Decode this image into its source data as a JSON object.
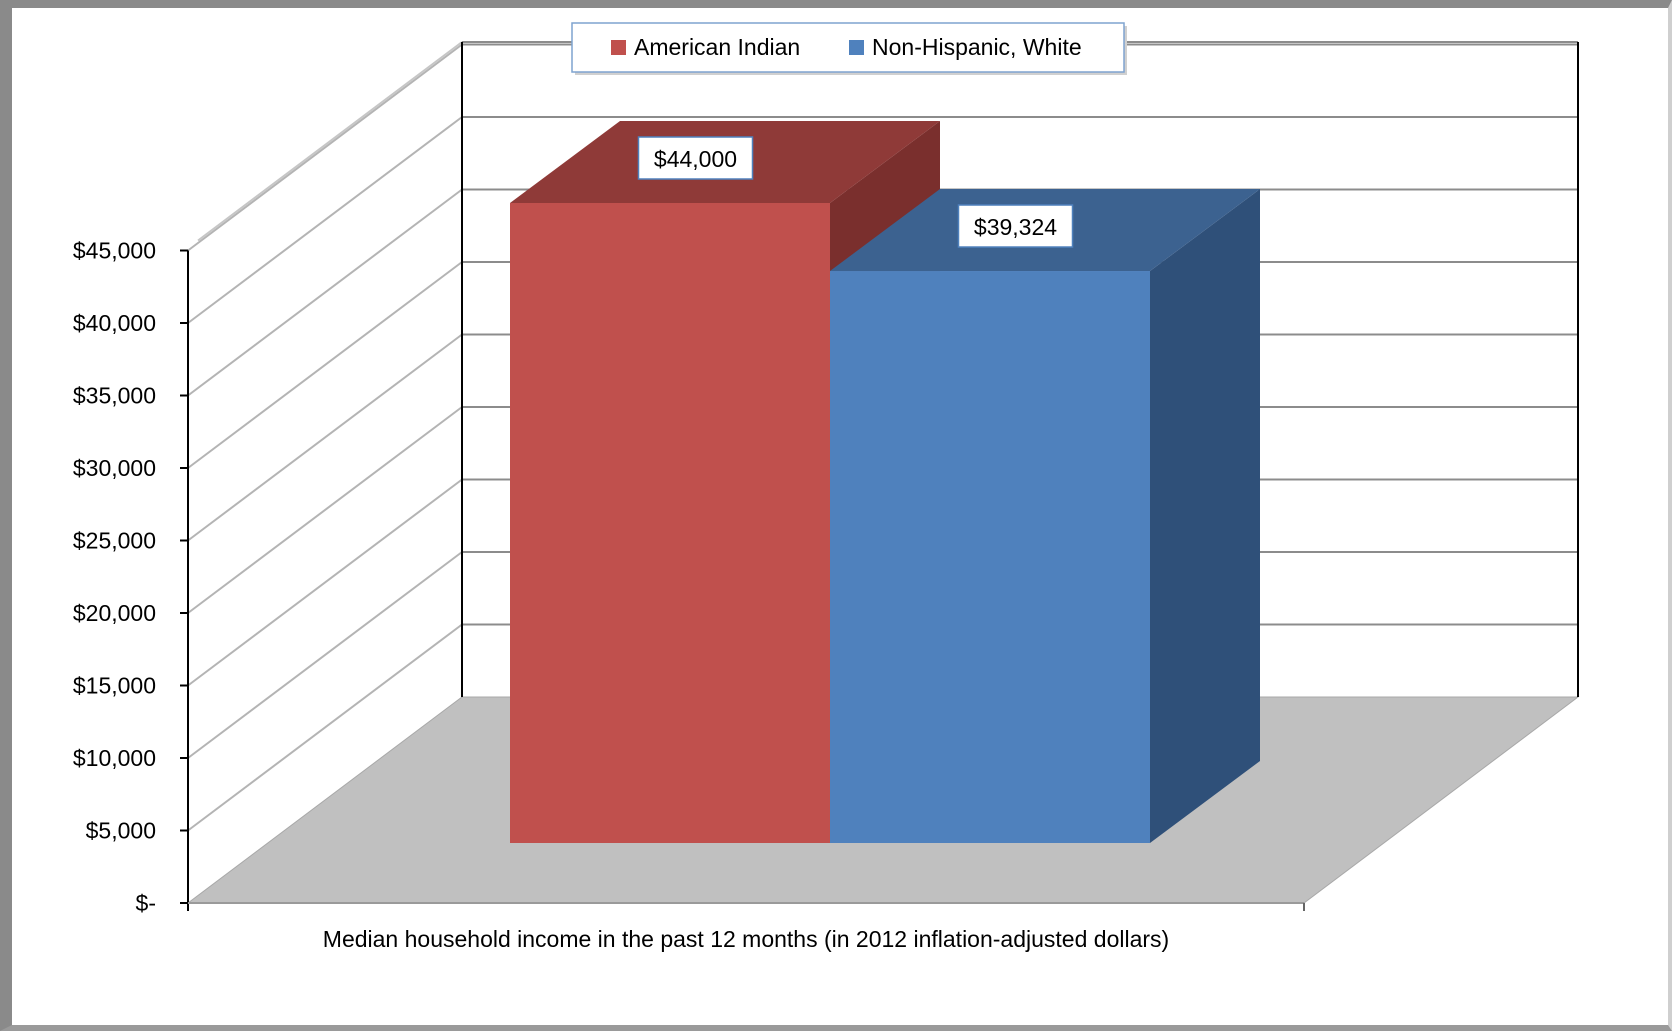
{
  "chart_data": {
    "type": "bar",
    "title": "",
    "xlabel": "Median household income in the past 12 months (in 2012 inflation-adjusted dollars)",
    "ylabel": "",
    "ylim": [
      0,
      45000
    ],
    "yticks": [
      0,
      5000,
      10000,
      15000,
      20000,
      25000,
      30000,
      35000,
      40000,
      45000
    ],
    "ytick_labels": [
      "$-",
      "$5,000",
      "$10,000",
      "$15,000",
      "$20,000",
      "$25,000",
      "$30,000",
      "$35,000",
      "$40,000",
      "$45,000"
    ],
    "grid": true,
    "legend_position": "top-center",
    "series": [
      {
        "name": "American Indian",
        "value": 44000,
        "label": "$44,000",
        "color": "#c0504d",
        "top_color": "#8f3a38",
        "side_color": "#7a2f2d"
      },
      {
        "name": "Non-Hispanic, White",
        "value": 39324,
        "label": "$39,324",
        "color": "#4f81bd",
        "top_color": "#3c6290",
        "side_color": "#2f5079"
      }
    ],
    "colors": {
      "floor": "#c0c0c0",
      "grid": "#8c8c8c",
      "axis": "#000000"
    }
  }
}
